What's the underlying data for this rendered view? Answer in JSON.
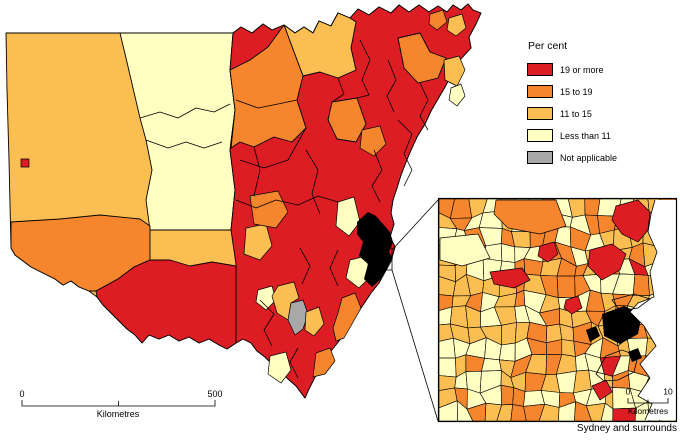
{
  "legend": {
    "title": "Per cent",
    "items": [
      {
        "key": "red",
        "label": "19 or more",
        "color": "#DC1E24"
      },
      {
        "key": "orange",
        "label": "15 to 19",
        "color": "#F6862E"
      },
      {
        "key": "amber",
        "label": "11 to 15",
        "color": "#FBBE52"
      },
      {
        "key": "paleyellow",
        "label": "Less than 11",
        "color": "#FFFFC2"
      },
      {
        "key": "gray",
        "label": "Not applicable",
        "color": "#A8A8A8"
      }
    ]
  },
  "colors": {
    "border": "#000000",
    "water": "#FFFFFF"
  },
  "scalebar_main": {
    "start": "0",
    "end": "500",
    "unit": "Kilometres"
  },
  "inset": {
    "title": "Sydney and surrounds",
    "scalebar": {
      "start": "0",
      "end": "10",
      "unit": "Kilometres"
    }
  }
}
